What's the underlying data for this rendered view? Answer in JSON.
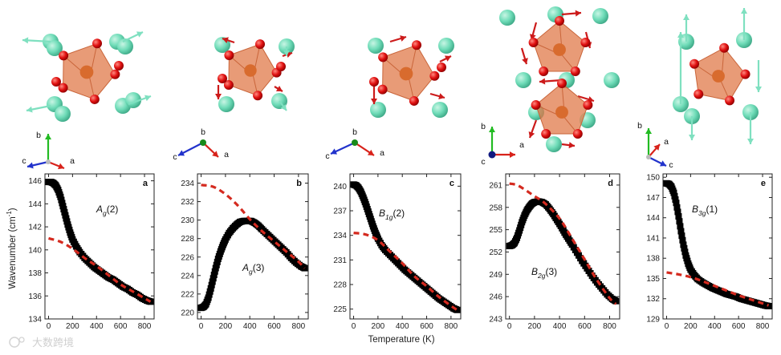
{
  "figure": {
    "ylabel": "Wavenumber (cm",
    "ylabel_sup": "-1",
    "ylabel_end": ")",
    "xlabel": "Temperature (K)",
    "watermark": "大数跨境",
    "colors": {
      "measured": "#000000",
      "model": "#d42a1f",
      "cation": "#6fdcb8",
      "oxygen": "#e01010",
      "octahedron": "#e07a4a",
      "axis_a": "#d8221a",
      "axis_b": "#22bb22",
      "axis_c": "#2233cc"
    },
    "triad_labels": {
      "a": "a",
      "b": "b",
      "c": "c"
    }
  },
  "chart_data": [
    {
      "type": "scatter",
      "panel": "a",
      "mode": "A",
      "mode_sub": "g",
      "mode_idx": "(2)",
      "xticks": [
        0,
        200,
        400,
        600,
        800
      ],
      "yticks": [
        134,
        136,
        138,
        140,
        142,
        144,
        146
      ],
      "xlim": [
        -30,
        880
      ],
      "ylim": [
        134,
        146.6
      ],
      "series": [
        {
          "kind": "squares",
          "points": [
            [
              0,
              145.9
            ],
            [
              20,
              145.9
            ],
            [
              40,
              145.8
            ],
            [
              60,
              145.6
            ],
            [
              80,
              145.2
            ],
            [
              100,
              144.6
            ],
            [
              120,
              143.8
            ],
            [
              140,
              143.0
            ],
            [
              160,
              142.2
            ],
            [
              180,
              141.5
            ],
            [
              200,
              140.9
            ],
            [
              230,
              140.3
            ],
            [
              260,
              139.8
            ],
            [
              300,
              139.3
            ],
            [
              340,
              138.9
            ],
            [
              380,
              138.5
            ],
            [
              420,
              138.2
            ],
            [
              460,
              137.9
            ],
            [
              500,
              137.6
            ],
            [
              540,
              137.4
            ],
            [
              580,
              137.1
            ],
            [
              620,
              136.8
            ],
            [
              660,
              136.6
            ],
            [
              700,
              136.3
            ],
            [
              740,
              136.1
            ],
            [
              780,
              135.8
            ],
            [
              820,
              135.6
            ],
            [
              850,
              135.5
            ]
          ]
        },
        {
          "kind": "dashed",
          "points": [
            [
              0,
              141.0
            ],
            [
              100,
              140.7
            ],
            [
              200,
              140.1
            ],
            [
              300,
              139.3
            ],
            [
              400,
              138.6
            ],
            [
              500,
              137.8
            ],
            [
              600,
              137.0
            ],
            [
              700,
              136.4
            ],
            [
              800,
              135.8
            ],
            [
              850,
              135.5
            ]
          ]
        }
      ]
    },
    {
      "type": "scatter",
      "panel": "b",
      "mode": "A",
      "mode_sub": "g",
      "mode_idx": "(3)",
      "xticks": [
        0,
        200,
        400,
        600,
        800
      ],
      "yticks": [
        220,
        222,
        224,
        226,
        228,
        230,
        232,
        234
      ],
      "xlim": [
        -30,
        880
      ],
      "ylim": [
        219.3,
        235
      ],
      "series": [
        {
          "kind": "squares",
          "points": [
            [
              0,
              220.5
            ],
            [
              20,
              220.6
            ],
            [
              40,
              220.9
            ],
            [
              60,
              221.6
            ],
            [
              80,
              222.6
            ],
            [
              100,
              223.7
            ],
            [
              120,
              224.8
            ],
            [
              140,
              225.8
            ],
            [
              160,
              226.6
            ],
            [
              180,
              227.3
            ],
            [
              200,
              227.9
            ],
            [
              230,
              228.6
            ],
            [
              260,
              229.1
            ],
            [
              290,
              229.5
            ],
            [
              320,
              229.8
            ],
            [
              350,
              229.9
            ],
            [
              380,
              229.9
            ],
            [
              410,
              229.9
            ],
            [
              440,
              229.7
            ],
            [
              470,
              229.4
            ],
            [
              500,
              229.0
            ],
            [
              540,
              228.5
            ],
            [
              580,
              228.0
            ],
            [
              620,
              227.5
            ],
            [
              660,
              227.0
            ],
            [
              700,
              226.5
            ],
            [
              740,
              225.9
            ],
            [
              780,
              225.4
            ],
            [
              820,
              225.0
            ],
            [
              850,
              224.8
            ]
          ]
        },
        {
          "kind": "dashed",
          "points": [
            [
              0,
              233.8
            ],
            [
              100,
              233.6
            ],
            [
              200,
              232.8
            ],
            [
              300,
              231.6
            ],
            [
              400,
              230.1
            ],
            [
              500,
              228.8
            ],
            [
              600,
              227.7
            ],
            [
              700,
              226.6
            ],
            [
              800,
              225.5
            ],
            [
              850,
              224.8
            ]
          ]
        }
      ]
    },
    {
      "type": "scatter",
      "panel": "c",
      "mode": "B",
      "mode_sub": "1g",
      "mode_idx": "(2)",
      "xticks": [
        0,
        200,
        400,
        600,
        800
      ],
      "yticks": [
        225,
        228,
        231,
        234,
        237,
        240
      ],
      "xlim": [
        -30,
        880
      ],
      "ylim": [
        223.8,
        241.5
      ],
      "series": [
        {
          "kind": "squares",
          "points": [
            [
              0,
              240.2
            ],
            [
              20,
              240.1
            ],
            [
              40,
              239.8
            ],
            [
              60,
              239.3
            ],
            [
              80,
              238.6
            ],
            [
              100,
              237.8
            ],
            [
              120,
              236.9
            ],
            [
              140,
              236.0
            ],
            [
              160,
              235.1
            ],
            [
              180,
              234.3
            ],
            [
              200,
              233.6
            ],
            [
              230,
              232.8
            ],
            [
              260,
              232.2
            ],
            [
              300,
              231.6
            ],
            [
              340,
              231.0
            ],
            [
              380,
              230.4
            ],
            [
              420,
              229.8
            ],
            [
              460,
              229.3
            ],
            [
              500,
              228.8
            ],
            [
              540,
              228.3
            ],
            [
              580,
              227.8
            ],
            [
              620,
              227.3
            ],
            [
              660,
              226.8
            ],
            [
              700,
              226.3
            ],
            [
              740,
              225.9
            ],
            [
              780,
              225.5
            ],
            [
              820,
              225.1
            ],
            [
              850,
              224.9
            ]
          ]
        },
        {
          "kind": "dashed",
          "points": [
            [
              0,
              234.3
            ],
            [
              100,
              234.1
            ],
            [
              200,
              233.4
            ],
            [
              300,
              232.0
            ],
            [
              400,
              230.6
            ],
            [
              500,
              229.0
            ],
            [
              600,
              227.8
            ],
            [
              700,
              226.5
            ],
            [
              800,
              225.4
            ],
            [
              850,
              224.9
            ]
          ]
        }
      ]
    },
    {
      "type": "scatter",
      "panel": "d",
      "mode": "B",
      "mode_sub": "2g",
      "mode_idx": "(3)",
      "xticks": [
        0,
        200,
        400,
        600,
        800
      ],
      "yticks": [
        243,
        246,
        249,
        252,
        255,
        258,
        261
      ],
      "xlim": [
        -30,
        880
      ],
      "ylim": [
        243,
        262.5
      ],
      "series": [
        {
          "kind": "squares",
          "points": [
            [
              0,
              252.8
            ],
            [
              20,
              252.9
            ],
            [
              40,
              253.2
            ],
            [
              60,
              253.9
            ],
            [
              80,
              254.9
            ],
            [
              100,
              256.0
            ],
            [
              120,
              256.9
            ],
            [
              140,
              257.6
            ],
            [
              160,
              258.1
            ],
            [
              180,
              258.5
            ],
            [
              200,
              258.7
            ],
            [
              230,
              258.8
            ],
            [
              260,
              258.7
            ],
            [
              290,
              258.4
            ],
            [
              320,
              257.8
            ],
            [
              350,
              257.1
            ],
            [
              380,
              256.3
            ],
            [
              410,
              255.5
            ],
            [
              440,
              254.6
            ],
            [
              470,
              253.8
            ],
            [
              500,
              253.0
            ],
            [
              540,
              251.9
            ],
            [
              580,
              250.8
            ],
            [
              620,
              249.8
            ],
            [
              660,
              248.8
            ],
            [
              700,
              247.9
            ],
            [
              740,
              247.1
            ],
            [
              780,
              246.3
            ],
            [
              820,
              245.7
            ],
            [
              850,
              245.4
            ]
          ]
        },
        {
          "kind": "dashed",
          "points": [
            [
              0,
              261.2
            ],
            [
              60,
              261.0
            ],
            [
              130,
              260.3
            ],
            [
              200,
              259.5
            ],
            [
              280,
              258.6
            ],
            [
              400,
              256.5
            ],
            [
              500,
              253.8
            ],
            [
              600,
              251.0
            ],
            [
              700,
              248.2
            ],
            [
              800,
              245.8
            ],
            [
              850,
              245.0
            ]
          ]
        }
      ]
    },
    {
      "type": "scatter",
      "panel": "e",
      "mode": "B",
      "mode_sub": "3g",
      "mode_idx": "(1)",
      "xticks": [
        0,
        200,
        400,
        600,
        800
      ],
      "yticks": [
        129,
        132,
        135,
        138,
        141,
        144,
        147,
        150
      ],
      "xlim": [
        -30,
        880
      ],
      "ylim": [
        129,
        150.5
      ],
      "series": [
        {
          "kind": "squares",
          "points": [
            [
              0,
              149.1
            ],
            [
              20,
              149.0
            ],
            [
              40,
              148.6
            ],
            [
              60,
              147.7
            ],
            [
              80,
              146.2
            ],
            [
              100,
              144.2
            ],
            [
              120,
              142.0
            ],
            [
              140,
              140.0
            ],
            [
              160,
              138.4
            ],
            [
              180,
              137.2
            ],
            [
              200,
              136.3
            ],
            [
              230,
              135.5
            ],
            [
              260,
              134.9
            ],
            [
              300,
              134.4
            ],
            [
              340,
              134.0
            ],
            [
              380,
              133.6
            ],
            [
              420,
              133.3
            ],
            [
              460,
              133.0
            ],
            [
              500,
              132.7
            ],
            [
              540,
              132.5
            ],
            [
              580,
              132.3
            ],
            [
              620,
              132.0
            ],
            [
              660,
              131.8
            ],
            [
              700,
              131.6
            ],
            [
              740,
              131.4
            ],
            [
              780,
              131.2
            ],
            [
              820,
              131.0
            ],
            [
              850,
              130.9
            ]
          ]
        },
        {
          "kind": "dashed",
          "points": [
            [
              0,
              135.9
            ],
            [
              100,
              135.6
            ],
            [
              200,
              135.2
            ],
            [
              300,
              134.6
            ],
            [
              400,
              133.9
            ],
            [
              500,
              133.2
            ],
            [
              600,
              132.5
            ],
            [
              700,
              131.9
            ],
            [
              800,
              131.3
            ],
            [
              850,
              131.0
            ]
          ]
        }
      ]
    }
  ]
}
